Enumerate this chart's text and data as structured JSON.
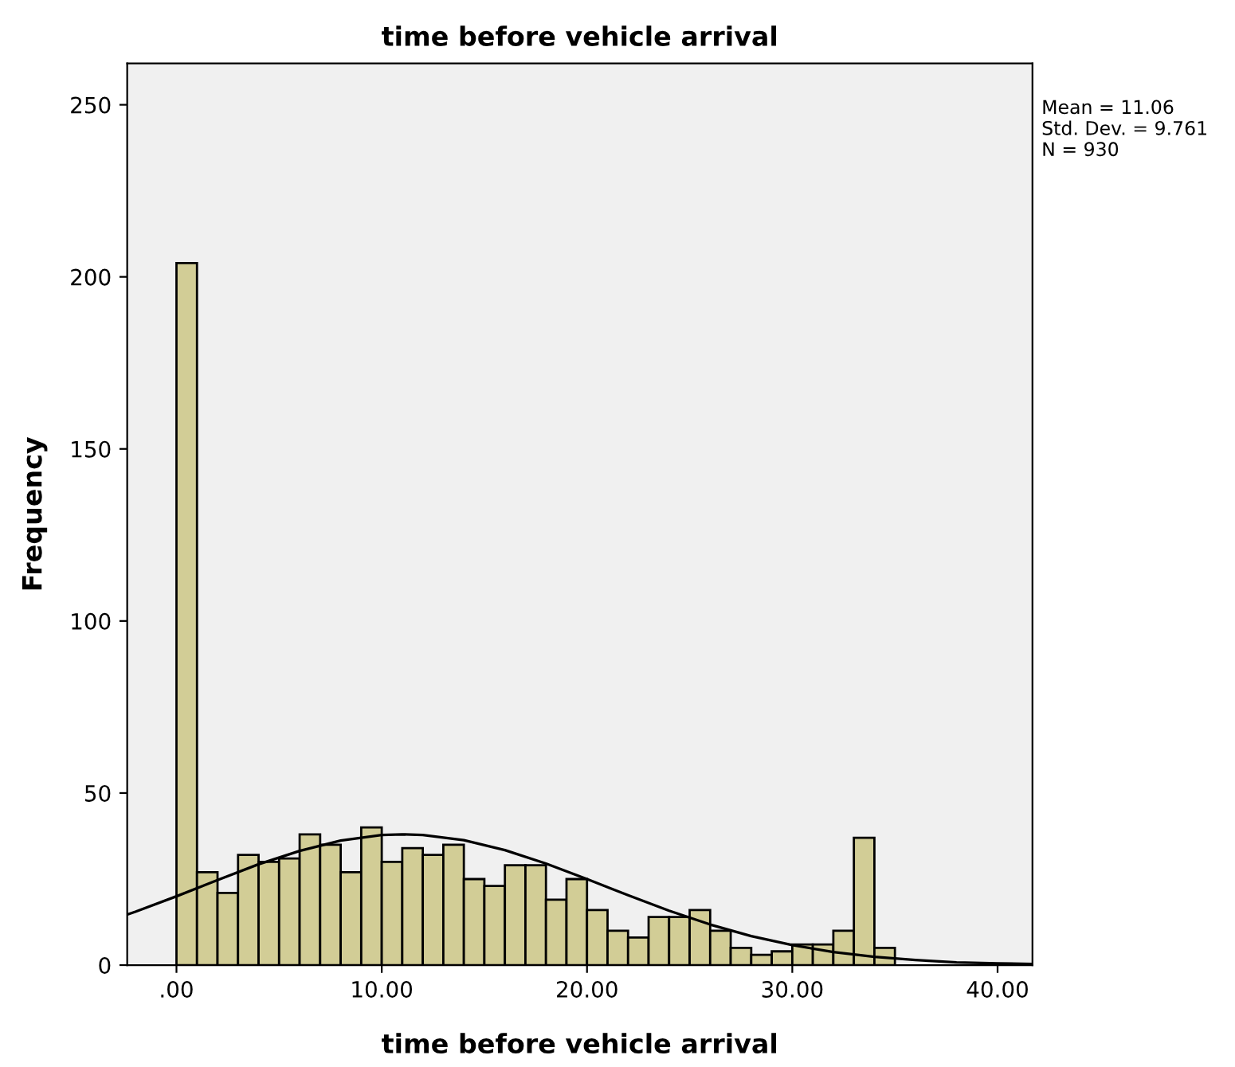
{
  "chart_data": {
    "type": "histogram",
    "title": "time before vehicle arrival",
    "xlabel": "time before vehicle arrival",
    "ylabel": "Frequency",
    "annotations": [
      "Mean = 11.06",
      "Std. Dev. = 9.761",
      "N = 930"
    ],
    "series": [
      {
        "color": "#d2cd96",
        "bins": [
          0,
          1,
          2,
          3,
          4,
          5,
          6,
          7,
          8,
          9,
          10,
          11,
          12,
          13,
          14,
          15,
          16,
          17,
          18,
          19,
          20,
          21,
          22,
          23,
          24,
          25,
          26,
          27,
          28,
          29,
          30,
          31,
          32,
          33,
          34,
          35
        ],
        "values": [
          204,
          27,
          21,
          32,
          30,
          31,
          38,
          35,
          27,
          40,
          30,
          34,
          32,
          35,
          25,
          23,
          29,
          29,
          19,
          25,
          16,
          10,
          8,
          14,
          14,
          16,
          10,
          5,
          3,
          4,
          6,
          6,
          10,
          37,
          5
        ]
      },
      {
        "type": "line",
        "color": "#000000",
        "x": [
          -2.4,
          -2,
          0,
          2,
          4,
          6,
          8,
          10,
          11,
          12,
          14,
          16,
          18,
          20,
          22,
          24,
          26,
          28,
          30,
          32,
          34,
          36,
          38,
          40,
          41.7
        ],
        "values": [
          14.7,
          15.5,
          20.0,
          24.7,
          29.3,
          33.2,
          36.2,
          37.8,
          38.0,
          37.8,
          36.3,
          33.4,
          29.5,
          25.0,
          20.3,
          15.8,
          11.8,
          8.4,
          5.8,
          3.8,
          2.4,
          1.5,
          0.8,
          0.5,
          0.3
        ]
      }
    ],
    "xlim": [
      -2.4,
      41.7
    ],
    "ylim": [
      0,
      262
    ],
    "xticks": [
      {
        "value": 0,
        "label": ".00"
      },
      {
        "value": 10,
        "label": "10.00"
      },
      {
        "value": 20,
        "label": "20.00"
      },
      {
        "value": 30,
        "label": "30.00"
      },
      {
        "value": 40,
        "label": "40.00"
      }
    ],
    "yticks": [
      0,
      50,
      100,
      150,
      200,
      250
    ],
    "grid": false,
    "legend": false
  }
}
